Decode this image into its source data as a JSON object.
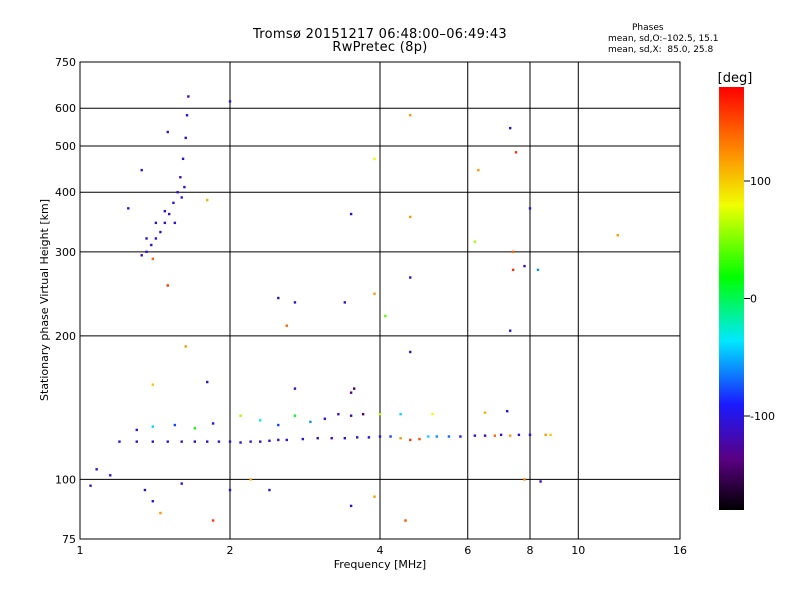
{
  "header": {
    "title": "Tromsø 20151217 06:48:00–06:49:43",
    "subtitle": "RwPretec (8p)"
  },
  "phase_info": {
    "heading": "Phases",
    "line_o": "mean, sd,O:–102.5, 15.1",
    "line_x": "mean, sd,X:  85.0, 25.8"
  },
  "colorbar": {
    "label": "[deg]",
    "range": [
      -180,
      180
    ],
    "ticks": [
      {
        "value": 100,
        "label": "100"
      },
      {
        "value": 0,
        "label": "0"
      },
      {
        "value": -100,
        "label": "-100"
      }
    ]
  },
  "chart_data": {
    "type": "scatter",
    "title": "Tromsø 20151217 06:48:00–06:49:43",
    "subtitle": "RwPretec (8p)",
    "xlabel": "Frequency [MHz]",
    "ylabel": "Stationary phase Virtual Height [km]",
    "x_scale": "log",
    "y_scale": "log",
    "xlim": [
      1,
      16
    ],
    "ylim": [
      75,
      750
    ],
    "xticks": [
      1,
      2,
      4,
      6,
      8,
      10,
      16
    ],
    "xtick_labels": [
      "1",
      "2",
      "4",
      "6",
      "8",
      "10",
      "16"
    ],
    "yticks": [
      75,
      100,
      200,
      300,
      400,
      500,
      600,
      750
    ],
    "ytick_labels": [
      "75",
      "100",
      "200",
      "300",
      "400",
      "500",
      "600",
      "750"
    ],
    "grid": true,
    "color_by": "phase [deg]",
    "points": [
      {
        "x": 1.33,
        "y": 295,
        "phase": -110
      },
      {
        "x": 1.36,
        "y": 300,
        "phase": -108
      },
      {
        "x": 1.39,
        "y": 310,
        "phase": -112
      },
      {
        "x": 1.42,
        "y": 320,
        "phase": -105
      },
      {
        "x": 1.45,
        "y": 330,
        "phase": -110
      },
      {
        "x": 1.48,
        "y": 345,
        "phase": -108
      },
      {
        "x": 1.51,
        "y": 360,
        "phase": -114
      },
      {
        "x": 1.54,
        "y": 380,
        "phase": -106
      },
      {
        "x": 1.57,
        "y": 400,
        "phase": -110
      },
      {
        "x": 1.59,
        "y": 430,
        "phase": -112
      },
      {
        "x": 1.61,
        "y": 470,
        "phase": -108
      },
      {
        "x": 1.63,
        "y": 520,
        "phase": -110
      },
      {
        "x": 1.64,
        "y": 580,
        "phase": -106
      },
      {
        "x": 1.65,
        "y": 635,
        "phase": -112
      },
      {
        "x": 1.36,
        "y": 320,
        "phase": -105
      },
      {
        "x": 1.42,
        "y": 345,
        "phase": -110
      },
      {
        "x": 1.48,
        "y": 365,
        "phase": -108
      },
      {
        "x": 1.55,
        "y": 345,
        "phase": -112
      },
      {
        "x": 1.6,
        "y": 390,
        "phase": -105
      },
      {
        "x": 1.62,
        "y": 410,
        "phase": -110
      },
      {
        "x": 1.5,
        "y": 535,
        "phase": -110
      },
      {
        "x": 1.33,
        "y": 445,
        "phase": -110
      },
      {
        "x": 1.25,
        "y": 370,
        "phase": -100
      },
      {
        "x": 2.0,
        "y": 620,
        "phase": -110
      },
      {
        "x": 1.4,
        "y": 290,
        "phase": 140
      },
      {
        "x": 1.5,
        "y": 255,
        "phase": 160
      },
      {
        "x": 1.8,
        "y": 385,
        "phase": 110
      },
      {
        "x": 1.63,
        "y": 190,
        "phase": 120
      },
      {
        "x": 1.2,
        "y": 120,
        "phase": -110
      },
      {
        "x": 1.3,
        "y": 120,
        "phase": -112
      },
      {
        "x": 1.4,
        "y": 120,
        "phase": -108
      },
      {
        "x": 1.5,
        "y": 120,
        "phase": -110
      },
      {
        "x": 1.6,
        "y": 120,
        "phase": -106
      },
      {
        "x": 1.7,
        "y": 120,
        "phase": -112
      },
      {
        "x": 1.8,
        "y": 120,
        "phase": -110
      },
      {
        "x": 1.9,
        "y": 120,
        "phase": -108
      },
      {
        "x": 2.0,
        "y": 120,
        "phase": -110
      },
      {
        "x": 2.1,
        "y": 119.5,
        "phase": -112
      },
      {
        "x": 2.2,
        "y": 120,
        "phase": -108
      },
      {
        "x": 2.3,
        "y": 120,
        "phase": -110
      },
      {
        "x": 2.4,
        "y": 120.5,
        "phase": -106
      },
      {
        "x": 2.5,
        "y": 121,
        "phase": -112
      },
      {
        "x": 2.6,
        "y": 121,
        "phase": -110
      },
      {
        "x": 2.8,
        "y": 121.5,
        "phase": -108
      },
      {
        "x": 3.0,
        "y": 122,
        "phase": -110
      },
      {
        "x": 3.2,
        "y": 122,
        "phase": -112
      },
      {
        "x": 3.4,
        "y": 122,
        "phase": -108
      },
      {
        "x": 3.6,
        "y": 122.5,
        "phase": -110
      },
      {
        "x": 3.8,
        "y": 122.5,
        "phase": -106
      },
      {
        "x": 4.0,
        "y": 123,
        "phase": -110
      },
      {
        "x": 4.2,
        "y": 123,
        "phase": -80
      },
      {
        "x": 4.4,
        "y": 122,
        "phase": 120
      },
      {
        "x": 4.6,
        "y": 121,
        "phase": 160
      },
      {
        "x": 4.8,
        "y": 121.5,
        "phase": 150
      },
      {
        "x": 5.0,
        "y": 123,
        "phase": -40
      },
      {
        "x": 5.2,
        "y": 123,
        "phase": -60
      },
      {
        "x": 5.5,
        "y": 123,
        "phase": -70
      },
      {
        "x": 5.8,
        "y": 123,
        "phase": -90
      },
      {
        "x": 6.2,
        "y": 123.5,
        "phase": -100
      },
      {
        "x": 6.5,
        "y": 123.5,
        "phase": -110
      },
      {
        "x": 6.8,
        "y": 123.5,
        "phase": 140
      },
      {
        "x": 7.0,
        "y": 124,
        "phase": -110
      },
      {
        "x": 7.3,
        "y": 123.5,
        "phase": 120
      },
      {
        "x": 7.6,
        "y": 124,
        "phase": -110
      },
      {
        "x": 8.0,
        "y": 124,
        "phase": -110
      },
      {
        "x": 8.6,
        "y": 124,
        "phase": 120
      },
      {
        "x": 8.8,
        "y": 124,
        "phase": 100
      },
      {
        "x": 1.3,
        "y": 127,
        "phase": -110
      },
      {
        "x": 1.4,
        "y": 129,
        "phase": -40
      },
      {
        "x": 1.55,
        "y": 130,
        "phase": -80
      },
      {
        "x": 1.7,
        "y": 128,
        "phase": 20
      },
      {
        "x": 1.85,
        "y": 131,
        "phase": -100
      },
      {
        "x": 2.1,
        "y": 136,
        "phase": 60
      },
      {
        "x": 2.3,
        "y": 133,
        "phase": -30
      },
      {
        "x": 2.5,
        "y": 130,
        "phase": -80
      },
      {
        "x": 2.7,
        "y": 136,
        "phase": 10
      },
      {
        "x": 2.9,
        "y": 132,
        "phase": -60
      },
      {
        "x": 3.1,
        "y": 134,
        "phase": -100
      },
      {
        "x": 3.3,
        "y": 137,
        "phase": -110
      },
      {
        "x": 3.5,
        "y": 136,
        "phase": -120
      },
      {
        "x": 3.7,
        "y": 137,
        "phase": -140
      },
      {
        "x": 4.0,
        "y": 137,
        "phase": 60
      },
      {
        "x": 4.4,
        "y": 137,
        "phase": -40
      },
      {
        "x": 5.1,
        "y": 137,
        "phase": 80
      },
      {
        "x": 6.5,
        "y": 138,
        "phase": 110
      },
      {
        "x": 7.2,
        "y": 139,
        "phase": -110
      },
      {
        "x": 3.5,
        "y": 152,
        "phase": -140
      },
      {
        "x": 3.55,
        "y": 155,
        "phase": -150
      },
      {
        "x": 2.7,
        "y": 155,
        "phase": -110
      },
      {
        "x": 1.8,
        "y": 160,
        "phase": -100
      },
      {
        "x": 1.4,
        "y": 158,
        "phase": 100
      },
      {
        "x": 1.05,
        "y": 97,
        "phase": -110
      },
      {
        "x": 1.08,
        "y": 105,
        "phase": -110
      },
      {
        "x": 1.15,
        "y": 102,
        "phase": -110
      },
      {
        "x": 1.35,
        "y": 95,
        "phase": -110
      },
      {
        "x": 1.4,
        "y": 90,
        "phase": -108
      },
      {
        "x": 1.45,
        "y": 85,
        "phase": 120
      },
      {
        "x": 1.6,
        "y": 98,
        "phase": -110
      },
      {
        "x": 1.85,
        "y": 82,
        "phase": 160
      },
      {
        "x": 2.0,
        "y": 95,
        "phase": -110
      },
      {
        "x": 2.2,
        "y": 100,
        "phase": 110
      },
      {
        "x": 2.4,
        "y": 95,
        "phase": -110
      },
      {
        "x": 3.5,
        "y": 88,
        "phase": -110
      },
      {
        "x": 3.9,
        "y": 92,
        "phase": 120
      },
      {
        "x": 4.5,
        "y": 82,
        "phase": 150
      },
      {
        "x": 8.4,
        "y": 99,
        "phase": -110
      },
      {
        "x": 7.8,
        "y": 100,
        "phase": 130
      },
      {
        "x": 2.5,
        "y": 240,
        "phase": -110
      },
      {
        "x": 2.7,
        "y": 235,
        "phase": -110
      },
      {
        "x": 2.6,
        "y": 210,
        "phase": 140
      },
      {
        "x": 3.4,
        "y": 235,
        "phase": -110
      },
      {
        "x": 3.5,
        "y": 360,
        "phase": -110
      },
      {
        "x": 3.9,
        "y": 470,
        "phase": 80
      },
      {
        "x": 3.9,
        "y": 245,
        "phase": 120
      },
      {
        "x": 4.1,
        "y": 220,
        "phase": 40
      },
      {
        "x": 4.6,
        "y": 580,
        "phase": 120
      },
      {
        "x": 4.6,
        "y": 355,
        "phase": 120
      },
      {
        "x": 4.6,
        "y": 265,
        "phase": -110
      },
      {
        "x": 4.6,
        "y": 185,
        "phase": -110
      },
      {
        "x": 6.2,
        "y": 315,
        "phase": 60
      },
      {
        "x": 6.3,
        "y": 445,
        "phase": 120
      },
      {
        "x": 7.3,
        "y": 545,
        "phase": -110
      },
      {
        "x": 7.5,
        "y": 485,
        "phase": 160
      },
      {
        "x": 8.0,
        "y": 370,
        "phase": -110
      },
      {
        "x": 7.4,
        "y": 300,
        "phase": 140
      },
      {
        "x": 7.4,
        "y": 275,
        "phase": 160
      },
      {
        "x": 7.8,
        "y": 280,
        "phase": -110
      },
      {
        "x": 8.3,
        "y": 275,
        "phase": -60
      },
      {
        "x": 7.3,
        "y": 205,
        "phase": -110
      },
      {
        "x": 12.0,
        "y": 325,
        "phase": 120
      }
    ]
  }
}
